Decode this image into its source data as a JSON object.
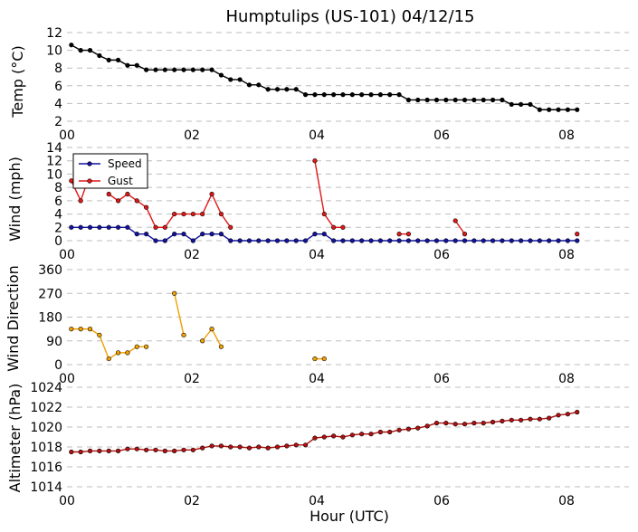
{
  "chart_data": {
    "title": "Humptulips (US-101) 04/12/15",
    "xlabel": "Hour (UTC)",
    "x_tick_labels": [
      "00",
      "02",
      "04",
      "06",
      "08"
    ],
    "x_ticks": [
      0,
      2,
      4,
      6,
      8
    ],
    "xlim": [
      0,
      9
    ],
    "grid": "horizontal dashed",
    "panels": [
      {
        "name": "temp",
        "type": "line",
        "ylabel": "Temp (°C)",
        "ylim": [
          2,
          12
        ],
        "y_ticks": [
          2,
          4,
          6,
          8,
          10,
          12
        ],
        "series": [
          {
            "color": "#000000",
            "x": [
              0.07,
              0.22,
              0.37,
              0.52,
              0.67,
              0.82,
              0.97,
              1.12,
              1.27,
              1.42,
              1.57,
              1.72,
              1.87,
              2.02,
              2.17,
              2.32,
              2.47,
              2.62,
              2.77,
              2.92,
              3.07,
              3.22,
              3.37,
              3.52,
              3.67,
              3.82,
              3.97,
              4.12,
              4.27,
              4.42,
              4.57,
              4.72,
              4.87,
              5.02,
              5.17,
              5.32,
              5.47,
              5.62,
              5.77,
              5.92,
              6.07,
              6.22,
              6.37,
              6.52,
              6.67,
              6.82,
              6.97,
              7.12,
              7.27,
              7.42,
              7.57,
              7.72,
              7.87,
              8.02,
              8.17
            ],
            "values": [
              10.6,
              10.0,
              10.0,
              9.4,
              8.9,
              8.9,
              8.3,
              8.3,
              7.8,
              7.8,
              7.8,
              7.8,
              7.8,
              7.8,
              7.8,
              7.8,
              7.2,
              6.7,
              6.7,
              6.1,
              6.1,
              5.6,
              5.6,
              5.6,
              5.6,
              5.0,
              5.0,
              5.0,
              5.0,
              5.0,
              5.0,
              5.0,
              5.0,
              5.0,
              5.0,
              5.0,
              4.4,
              4.4,
              4.4,
              4.4,
              4.4,
              4.4,
              4.4,
              4.4,
              4.4,
              4.4,
              4.4,
              3.9,
              3.9,
              3.9,
              3.3,
              3.3,
              3.3,
              3.3,
              3.3
            ]
          }
        ]
      },
      {
        "name": "wind",
        "type": "line",
        "ylabel": "Wind (mph)",
        "ylim": [
          0,
          14
        ],
        "y_ticks": [
          0,
          2,
          4,
          6,
          8,
          10,
          12,
          14
        ],
        "legend": "top-left",
        "series": [
          {
            "name": "Speed",
            "color": "#1212a0",
            "x": [
              0.07,
              0.22,
              0.37,
              0.52,
              0.67,
              0.82,
              0.97,
              1.12,
              1.27,
              1.42,
              1.57,
              1.72,
              1.87,
              2.02,
              2.17,
              2.32,
              2.47,
              2.62,
              2.77,
              2.92,
              3.07,
              3.22,
              3.37,
              3.52,
              3.67,
              3.82,
              3.97,
              4.12,
              4.27,
              4.42,
              4.57,
              4.72,
              4.87,
              5.02,
              5.17,
              5.32,
              5.47,
              5.62,
              5.77,
              5.92,
              6.07,
              6.22,
              6.37,
              6.52,
              6.67,
              6.82,
              6.97,
              7.12,
              7.27,
              7.42,
              7.57,
              7.72,
              7.87,
              8.02,
              8.17
            ],
            "values": [
              2,
              2,
              2,
              2,
              2,
              2,
              2,
              1,
              1,
              0,
              0,
              1,
              1,
              0,
              1,
              1,
              1,
              0,
              0,
              0,
              0,
              0,
              0,
              0,
              0,
              0,
              1,
              1,
              0,
              0,
              0,
              0,
              0,
              0,
              0,
              0,
              0,
              0,
              0,
              0,
              0,
              0,
              0,
              0,
              0,
              0,
              0,
              0,
              0,
              0,
              0,
              0,
              0,
              0,
              0
            ]
          },
          {
            "name": "Gust",
            "color": "#e01818",
            "x": [
              0.07,
              0.22,
              0.37,
              0.52,
              0.67,
              0.82,
              0.97,
              1.12,
              1.27,
              1.42,
              1.57,
              1.72,
              1.87,
              2.02,
              2.17,
              2.32,
              2.47,
              2.62,
              2.77,
              2.92,
              3.07,
              3.22,
              3.37,
              3.52,
              3.67,
              3.82,
              3.97,
              4.12,
              4.27,
              4.42,
              4.57,
              4.72,
              4.87,
              5.02,
              5.17,
              5.32,
              5.47,
              5.62,
              5.77,
              5.92,
              6.07,
              6.22,
              6.37,
              6.52,
              6.67,
              6.82,
              6.97,
              7.12,
              7.27,
              7.42,
              7.57,
              7.72,
              7.87,
              8.02,
              8.17
            ],
            "values": [
              9,
              6,
              10,
              null,
              7,
              6,
              7,
              6,
              5,
              2,
              2,
              4,
              4,
              4,
              4,
              7,
              4,
              2,
              null,
              null,
              null,
              null,
              null,
              null,
              null,
              null,
              12,
              4,
              2,
              2,
              null,
              null,
              null,
              null,
              null,
              1,
              1,
              null,
              null,
              null,
              null,
              3,
              1,
              null,
              null,
              null,
              null,
              null,
              null,
              null,
              null,
              null,
              null,
              null,
              1
            ]
          }
        ]
      },
      {
        "name": "direction",
        "type": "line",
        "ylabel": "Wind Direction",
        "ylim": [
          0,
          360
        ],
        "y_ticks": [
          0,
          90,
          180,
          270,
          360
        ],
        "series": [
          {
            "color": "#f0a000",
            "x": [
              0.07,
              0.22,
              0.37,
              0.52,
              0.67,
              0.82,
              0.97,
              1.12,
              1.27,
              1.42,
              1.57,
              1.72,
              1.87,
              2.02,
              2.17,
              2.32,
              2.47,
              2.62,
              2.77,
              2.92,
              3.07,
              3.22,
              3.37,
              3.52,
              3.67,
              3.82,
              3.97,
              4.12
            ],
            "values": [
              135,
              135,
              135,
              112,
              22,
              45,
              45,
              68,
              68,
              null,
              null,
              270,
              112,
              null,
              90,
              135,
              68,
              null,
              null,
              null,
              null,
              null,
              null,
              null,
              null,
              null,
              22,
              22
            ]
          }
        ]
      },
      {
        "name": "altimeter",
        "type": "line",
        "ylabel": "Altimeter (hPa)",
        "ylim": [
          1014,
          1024
        ],
        "y_ticks": [
          1014,
          1016,
          1018,
          1020,
          1022,
          1024
        ],
        "series": [
          {
            "color": "#b01010",
            "x": [
              0.07,
              0.22,
              0.37,
              0.52,
              0.67,
              0.82,
              0.97,
              1.12,
              1.27,
              1.42,
              1.57,
              1.72,
              1.87,
              2.02,
              2.17,
              2.32,
              2.47,
              2.62,
              2.77,
              2.92,
              3.07,
              3.22,
              3.37,
              3.52,
              3.67,
              3.82,
              3.97,
              4.12,
              4.27,
              4.42,
              4.57,
              4.72,
              4.87,
              5.02,
              5.17,
              5.32,
              5.47,
              5.62,
              5.77,
              5.92,
              6.07,
              6.22,
              6.37,
              6.52,
              6.67,
              6.82,
              6.97,
              7.12,
              7.27,
              7.42,
              7.57,
              7.72,
              7.87,
              8.02,
              8.17
            ],
            "values": [
              1017.5,
              1017.5,
              1017.6,
              1017.6,
              1017.6,
              1017.6,
              1017.8,
              1017.8,
              1017.7,
              1017.7,
              1017.6,
              1017.6,
              1017.7,
              1017.7,
              1017.9,
              1018.1,
              1018.1,
              1018.0,
              1018.0,
              1017.9,
              1018.0,
              1017.9,
              1018.0,
              1018.1,
              1018.2,
              1018.2,
              1018.9,
              1019.0,
              1019.1,
              1019.0,
              1019.2,
              1019.3,
              1019.3,
              1019.5,
              1019.5,
              1019.7,
              1019.8,
              1019.9,
              1020.1,
              1020.4,
              1020.4,
              1020.3,
              1020.3,
              1020.4,
              1020.4,
              1020.5,
              1020.6,
              1020.7,
              1020.7,
              1020.8,
              1020.8,
              1020.9,
              1021.2,
              1021.3,
              1021.5
            ]
          }
        ]
      }
    ]
  }
}
